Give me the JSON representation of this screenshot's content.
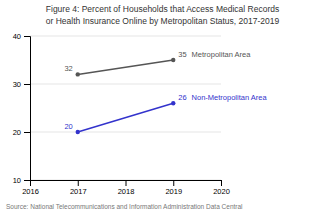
{
  "chart_data": {
    "type": "line",
    "title": "Figure 4: Percent of Households that Access Medical Records",
    "subtitle": "or Health Insurance Online by Metropolitan Status, 2017-2019",
    "annotations": [
      "Source: National Telecommunications and Information Administration Data Central"
    ],
    "x": [
      2017,
      2019
    ],
    "series": [
      {
        "name": "Metropolitan Area",
        "color": "#555555",
        "marker": "circle",
        "line_style": "solid",
        "values": [
          32,
          35
        ]
      },
      {
        "name": "Non-Metropolitan Area",
        "color": "#3333cc",
        "marker": "circle",
        "line_style": "solid",
        "values": [
          20,
          26
        ]
      }
    ],
    "xlim": [
      2016,
      2020
    ],
    "xticks": [
      2016,
      2017,
      2018,
      2019,
      2020
    ],
    "ylim": [
      10,
      40
    ],
    "yticks": [
      10,
      20,
      30,
      40
    ],
    "grid": true,
    "data_labels": true
  }
}
